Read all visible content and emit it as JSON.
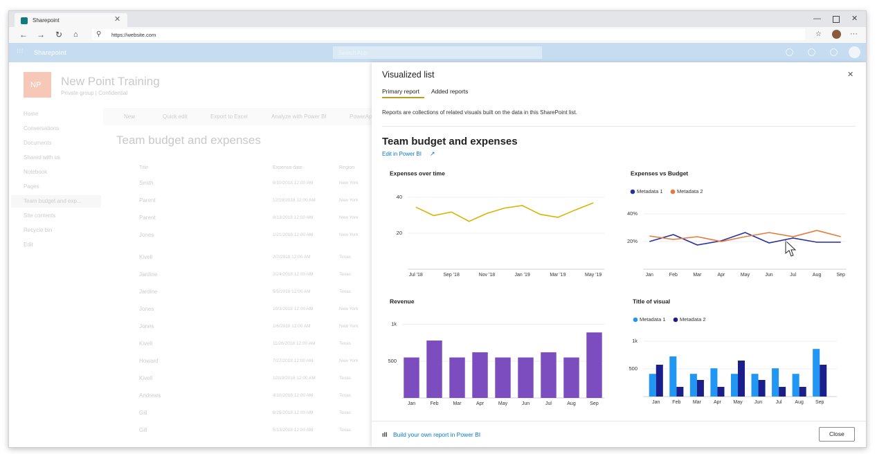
{
  "browser": {
    "tab_title": "Sharepoint",
    "url": "https://website.com"
  },
  "app_bar": {
    "title": "Sharepoint",
    "search_placeholder": "Search App"
  },
  "site": {
    "logo": "NP",
    "name": "New Point Training",
    "subtitle": "Private group | Confidential",
    "nav": [
      "Home",
      "Conversations",
      "Documents",
      "Shared with us",
      "Notebook",
      "Pages",
      "Team budget and exp...",
      "Site contents",
      "Recycle bin",
      "Edit"
    ],
    "toolbar": [
      "New",
      "Quick edit",
      "Export to Excel",
      "Analyze with Power BI",
      "PowerAp"
    ],
    "list_title": "Team budget and expenses",
    "columns": [
      "Title",
      "Expense date",
      "Region"
    ],
    "rows": [
      [
        "Smith",
        "9/10/2018 12:00 AM",
        "New York"
      ],
      [
        "Parent",
        "12/19/2018 12:00 AM",
        "New York"
      ],
      [
        "Parent",
        "8/13/2018 12:00 AM",
        "New York"
      ],
      [
        "Jones",
        "1/21/2018 12:00 AM",
        "New York"
      ],
      [
        "Kivell",
        "2/7/2018 12:00 AM",
        "Texas"
      ],
      [
        "Jardine",
        "2/24/2018 12:00 AM",
        "Texas"
      ],
      [
        "Jardine",
        "5/5/2018 12:00 AM",
        "Texas"
      ],
      [
        "Jones",
        "10/3/2018 12:00 AM",
        "New York"
      ],
      [
        "Jones",
        "1/6/2018 12:00 AM",
        "New York"
      ],
      [
        "Kivell",
        "11/26/2018 12:00 AM",
        "Texas"
      ],
      [
        "Howard",
        "7/27/2018 12:00 AM",
        "New York"
      ],
      [
        "Kivell",
        "12/10/2018 12:00 AM",
        "Texas"
      ],
      [
        "Andrews",
        "4/10/2018 12:00 AM",
        "Texas"
      ],
      [
        "Gill",
        "8/25/2018 12:00 AM",
        "Texas"
      ],
      [
        "Gill",
        "5/13/2018 12:00 AM",
        "Texas"
      ]
    ]
  },
  "panel": {
    "title": "Visualized list",
    "tabs": [
      "Primary report",
      "Added reports"
    ],
    "description": "Reports are collections of related visuals built on the data in this SharePoint list.",
    "report_title": "Team budget and expenses",
    "edit_link": "Edit in Power BI",
    "footer_link": "Build your own report in Power BI",
    "close_button": "Close"
  },
  "chart_data": [
    {
      "type": "line",
      "title": "Expenses over time",
      "categories": [
        "Jul '18",
        null,
        "Sep '18",
        null,
        "Nov '18",
        null,
        "Jan '19",
        null,
        "Mar '19",
        null,
        "May '19"
      ],
      "values": [
        34.5,
        29.8,
        31.8,
        26.6,
        31,
        34,
        35.4,
        30.5,
        28.8,
        33,
        36.9
      ],
      "color": "#d9b300",
      "ylim": [
        0,
        45
      ],
      "yticks": [
        20,
        40
      ],
      "grid": true
    },
    {
      "type": "line",
      "title": "Expenses vs Budget",
      "categories": [
        "Jan",
        "Feb",
        "Mar",
        "Apr",
        "May",
        "Jun",
        "Jul",
        "Aug",
        "Sep"
      ],
      "series": [
        {
          "name": "Metadata 1",
          "color": "#2a2f9e",
          "values": [
            20,
            25,
            17.5,
            20.5,
            26.5,
            19,
            22.5,
            19.5,
            19.5
          ]
        },
        {
          "name": "Metadata 2",
          "color": "#e8773a",
          "values": [
            24,
            21.5,
            23.5,
            20,
            23.5,
            26.5,
            23.5,
            28,
            23.5
          ]
        }
      ],
      "ylim": [
        0,
        45
      ],
      "yticks": [
        {
          "value": 20,
          "label": "20%"
        },
        {
          "value": 40,
          "label": "40%"
        }
      ],
      "grid": true,
      "legend": "top-left"
    },
    {
      "type": "bar",
      "title": "Revenue",
      "categories": [
        "Jan",
        "Feb",
        "Mar",
        "Apr",
        "May",
        "Jun",
        "Jul",
        "Aug",
        "Sep"
      ],
      "values": [
        550,
        780,
        550,
        620,
        550,
        550,
        620,
        550,
        890
      ],
      "color": "#7c4dbf",
      "ylim": [
        0,
        1100
      ],
      "yticks": [
        500,
        {
          "value": 1000,
          "label": "1k"
        }
      ],
      "grid": true
    },
    {
      "type": "bar",
      "title": "Title of visual",
      "categories": [
        "Jan",
        "Feb",
        "Mar",
        "Apr",
        "May",
        "Jun",
        "Jul",
        "Aug",
        "Sep"
      ],
      "series": [
        {
          "name": "Metadata 1",
          "color": "#2196f3",
          "values": [
            410,
            725,
            410,
            510,
            410,
            410,
            510,
            410,
            860
          ]
        },
        {
          "name": "Metadata 2",
          "color": "#1a1f8c",
          "values": [
            575,
            175,
            300,
            175,
            650,
            300,
            175,
            175,
            575
          ]
        }
      ],
      "ylim": [
        0,
        1100
      ],
      "yticks": [
        500,
        {
          "value": 1000,
          "label": "1k"
        }
      ],
      "grid": true,
      "legend": "top-left"
    }
  ]
}
